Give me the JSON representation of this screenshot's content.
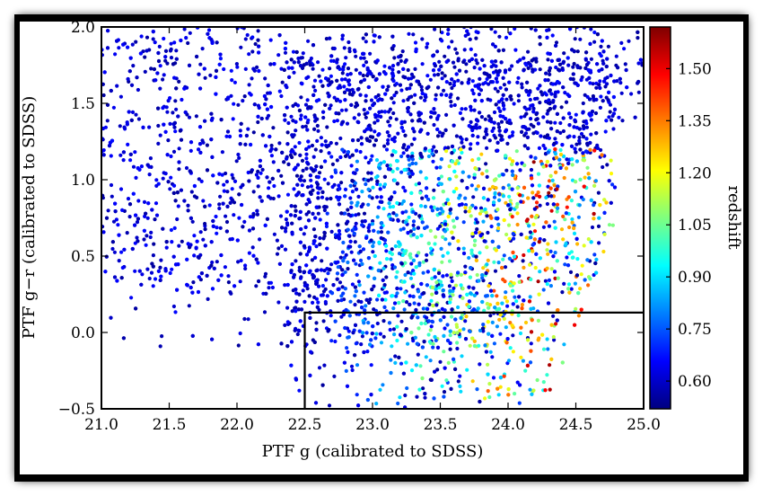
{
  "chart_data": {
    "type": "scatter",
    "xlabel": "PTF g (calibrated to SDSS)",
    "ylabel": "PTF g−r (calibrated to SDSS)",
    "xlim": [
      21.0,
      25.0
    ],
    "ylim": [
      -0.5,
      2.0
    ],
    "xticks": [
      "21.0",
      "21.5",
      "22.0",
      "22.5",
      "23.0",
      "23.5",
      "24.0",
      "24.5",
      "25.0"
    ],
    "yticks": [
      "−0.5",
      "0.0",
      "0.5",
      "1.0",
      "1.5",
      "2.0"
    ],
    "colorbar": {
      "label": "redshift",
      "range": [
        0.52,
        1.62
      ],
      "ticks": [
        "0.60",
        "0.75",
        "0.90",
        "1.05",
        "1.20",
        "1.35",
        "1.50"
      ],
      "colormap": "jet"
    },
    "selection_box": {
      "x_min": 22.5,
      "x_max": 25.0,
      "y_min": -0.5,
      "y_max": 0.13
    },
    "grid": false,
    "legend": "none",
    "colors": {
      "frame_shadow": "#000000",
      "box_line": "#000000"
    }
  }
}
